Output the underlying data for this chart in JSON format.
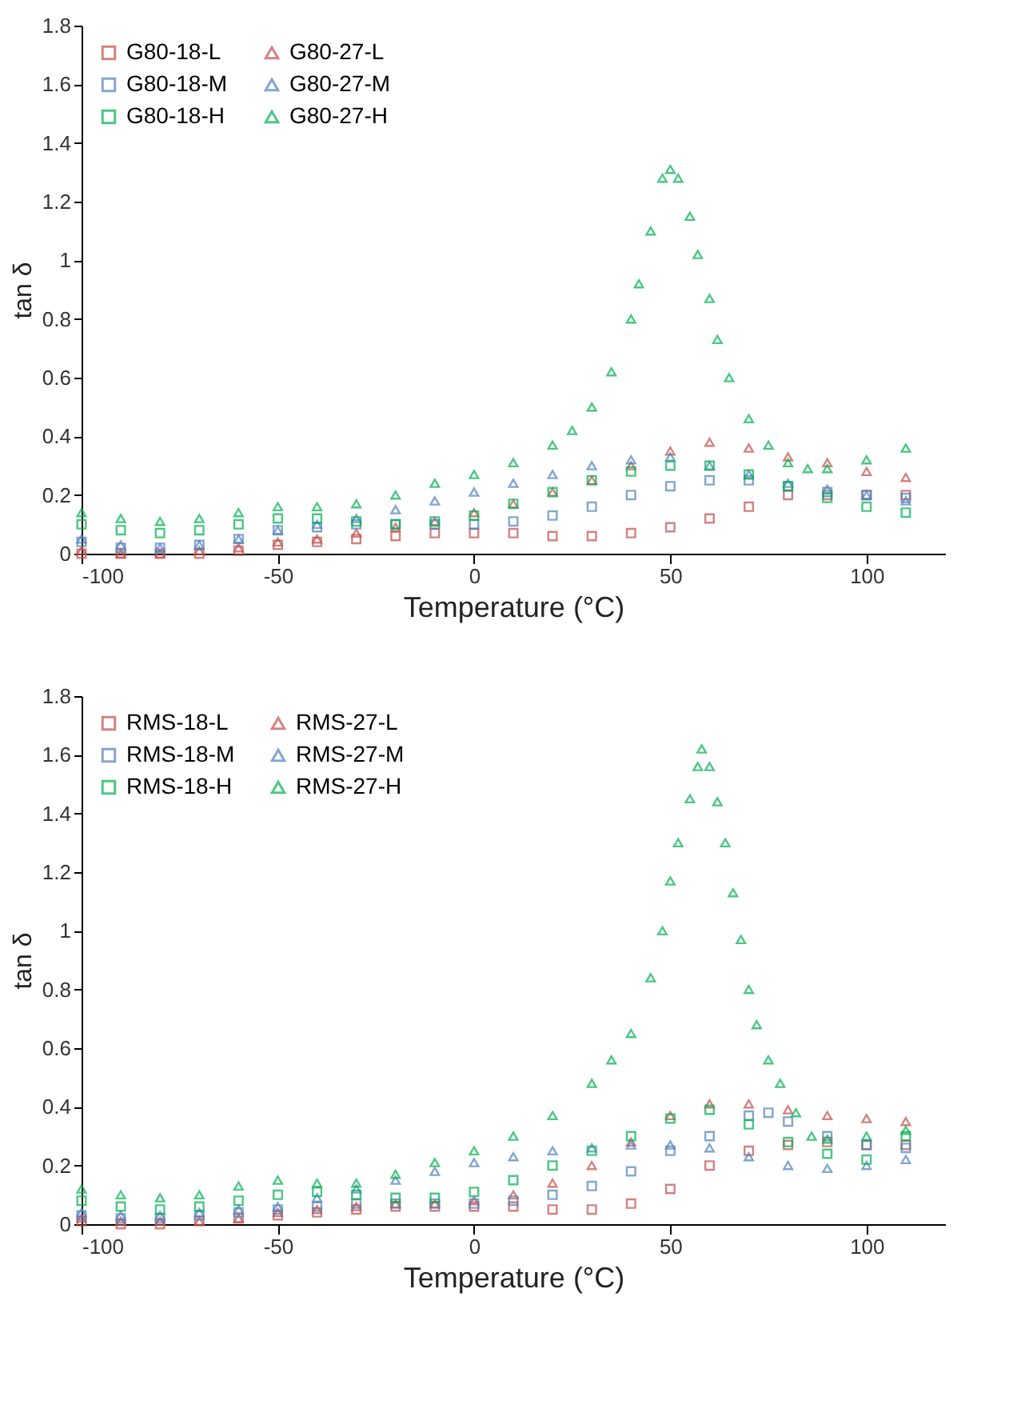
{
  "chart_data": [
    {
      "type": "scatter",
      "xlabel": "Temperature (°C)",
      "ylabel": "tan δ",
      "xlim": [
        -100,
        120
      ],
      "xticks": [
        -100,
        -50,
        0,
        50,
        100
      ],
      "ylim": [
        0,
        1.8
      ],
      "yticks": [
        0,
        0.2,
        0.4,
        0.6,
        0.8,
        1,
        1.2,
        1.4,
        1.6,
        1.8
      ],
      "grid": false,
      "legend": "top left",
      "x": [
        -100,
        -90,
        -80,
        -70,
        -60,
        -50,
        -40,
        -30,
        -20,
        -10,
        0,
        10,
        20,
        30,
        40,
        50,
        60,
        70,
        80,
        90,
        100,
        110
      ],
      "series": [
        {
          "name": "G80-18-L",
          "color": "#c0504d",
          "marker": "square",
          "values": [
            0.0,
            0.0,
            0.0,
            0.0,
            0.01,
            0.03,
            0.04,
            0.05,
            0.06,
            0.07,
            0.07,
            0.07,
            0.06,
            0.06,
            0.07,
            0.09,
            0.12,
            0.16,
            0.2,
            0.2,
            0.2,
            0.2
          ]
        },
        {
          "name": "G80-27-L",
          "color": "#c0504d",
          "marker": "triangle",
          "values": [
            0.01,
            0.0,
            0.0,
            0.01,
            0.02,
            0.04,
            0.05,
            0.07,
            0.09,
            0.11,
            0.14,
            0.17,
            0.21,
            0.25,
            0.3,
            0.35,
            0.38,
            0.36,
            0.33,
            0.31,
            0.28,
            0.26
          ]
        },
        {
          "name": "G80-18-M",
          "color": "#4f81bd",
          "marker": "square",
          "values": [
            0.04,
            0.02,
            0.02,
            0.03,
            0.05,
            0.08,
            0.09,
            0.1,
            0.1,
            0.1,
            0.1,
            0.11,
            0.13,
            0.16,
            0.2,
            0.23,
            0.25,
            0.25,
            0.23,
            0.21,
            0.2,
            0.19
          ]
        },
        {
          "name": "G80-27-M",
          "color": "#4f81bd",
          "marker": "triangle",
          "values": [
            0.05,
            0.03,
            0.02,
            0.03,
            0.05,
            0.08,
            0.1,
            0.12,
            0.15,
            0.18,
            0.21,
            0.24,
            0.27,
            0.3,
            0.32,
            0.33,
            0.3,
            0.27,
            0.24,
            0.22,
            0.2,
            0.18
          ]
        },
        {
          "name": "G80-18-H",
          "color": "#00b050",
          "marker": "square",
          "values": [
            0.1,
            0.08,
            0.07,
            0.08,
            0.1,
            0.12,
            0.12,
            0.11,
            0.1,
            0.11,
            0.13,
            0.17,
            0.21,
            0.25,
            0.28,
            0.3,
            0.3,
            0.27,
            0.23,
            0.19,
            0.16,
            0.14
          ]
        },
        {
          "name": "G80-27-H",
          "color": "#00b050",
          "marker": "triangle",
          "x": [
            -100,
            -90,
            -80,
            -70,
            -60,
            -50,
            -40,
            -30,
            -20,
            -10,
            0,
            10,
            20,
            25,
            30,
            35,
            40,
            42,
            45,
            48,
            50,
            52,
            55,
            57,
            60,
            62,
            65,
            70,
            75,
            80,
            85,
            90,
            100,
            110
          ],
          "values": [
            0.14,
            0.12,
            0.11,
            0.12,
            0.14,
            0.16,
            0.16,
            0.17,
            0.2,
            0.24,
            0.27,
            0.31,
            0.37,
            0.42,
            0.5,
            0.62,
            0.8,
            0.92,
            1.1,
            1.28,
            1.31,
            1.28,
            1.15,
            1.02,
            0.87,
            0.73,
            0.6,
            0.46,
            0.37,
            0.31,
            0.29,
            0.29,
            0.32,
            0.36
          ]
        }
      ]
    },
    {
      "type": "scatter",
      "xlabel": "Temperature (°C)",
      "ylabel": "tan δ",
      "xlim": [
        -100,
        120
      ],
      "xticks": [
        -100,
        -50,
        0,
        50,
        100
      ],
      "ylim": [
        0,
        1.8
      ],
      "yticks": [
        0,
        0.2,
        0.4,
        0.6,
        0.8,
        1,
        1.2,
        1.4,
        1.6,
        1.8
      ],
      "grid": false,
      "legend": "top left",
      "x": [
        -100,
        -90,
        -80,
        -70,
        -60,
        -50,
        -40,
        -30,
        -20,
        -10,
        0,
        10,
        20,
        30,
        40,
        50,
        60,
        70,
        80,
        90,
        100,
        110
      ],
      "series": [
        {
          "name": "RMS-18-L",
          "color": "#c0504d",
          "marker": "square",
          "values": [
            0.01,
            0.0,
            0.0,
            0.01,
            0.02,
            0.03,
            0.04,
            0.05,
            0.06,
            0.06,
            0.06,
            0.06,
            0.05,
            0.05,
            0.07,
            0.12,
            0.2,
            0.25,
            0.27,
            0.28,
            0.27,
            0.27
          ]
        },
        {
          "name": "RMS-27-L",
          "color": "#c0504d",
          "marker": "triangle",
          "values": [
            0.02,
            0.01,
            0.01,
            0.01,
            0.02,
            0.04,
            0.05,
            0.06,
            0.07,
            0.07,
            0.08,
            0.1,
            0.14,
            0.2,
            0.28,
            0.37,
            0.41,
            0.41,
            0.39,
            0.37,
            0.36,
            0.35
          ]
        },
        {
          "name": "RMS-18-M",
          "color": "#4f81bd",
          "marker": "square",
          "x": [
            -100,
            -90,
            -80,
            -70,
            -60,
            -50,
            -40,
            -30,
            -20,
            -10,
            0,
            10,
            20,
            30,
            40,
            50,
            60,
            70,
            75,
            80,
            90,
            100,
            110
          ],
          "values": [
            0.03,
            0.02,
            0.02,
            0.03,
            0.04,
            0.05,
            0.06,
            0.07,
            0.07,
            0.07,
            0.07,
            0.08,
            0.1,
            0.13,
            0.18,
            0.25,
            0.3,
            0.37,
            0.38,
            0.35,
            0.3,
            0.27,
            0.26
          ]
        },
        {
          "name": "RMS-27-M",
          "color": "#4f81bd",
          "marker": "triangle",
          "values": [
            0.04,
            0.03,
            0.03,
            0.04,
            0.05,
            0.06,
            0.09,
            0.12,
            0.15,
            0.18,
            0.21,
            0.23,
            0.25,
            0.26,
            0.27,
            0.27,
            0.26,
            0.23,
            0.2,
            0.19,
            0.2,
            0.22
          ]
        },
        {
          "name": "RMS-18-H",
          "color": "#00b050",
          "marker": "square",
          "values": [
            0.08,
            0.06,
            0.05,
            0.06,
            0.08,
            0.1,
            0.11,
            0.1,
            0.09,
            0.09,
            0.11,
            0.15,
            0.2,
            0.25,
            0.3,
            0.36,
            0.39,
            0.34,
            0.28,
            0.24,
            0.22,
            0.3
          ]
        },
        {
          "name": "RMS-27-H",
          "color": "#00b050",
          "marker": "triangle",
          "x": [
            -100,
            -90,
            -80,
            -70,
            -60,
            -50,
            -40,
            -30,
            -20,
            -10,
            0,
            10,
            20,
            30,
            35,
            40,
            45,
            48,
            50,
            52,
            55,
            57,
            58,
            60,
            62,
            64,
            66,
            68,
            70,
            72,
            75,
            78,
            82,
            86,
            90,
            100,
            110
          ],
          "values": [
            0.12,
            0.1,
            0.09,
            0.1,
            0.13,
            0.15,
            0.14,
            0.14,
            0.17,
            0.21,
            0.25,
            0.3,
            0.37,
            0.48,
            0.56,
            0.65,
            0.84,
            1.0,
            1.17,
            1.3,
            1.45,
            1.56,
            1.62,
            1.56,
            1.44,
            1.3,
            1.13,
            0.97,
            0.8,
            0.68,
            0.56,
            0.48,
            0.38,
            0.3,
            0.29,
            0.3,
            0.32
          ]
        }
      ]
    }
  ]
}
